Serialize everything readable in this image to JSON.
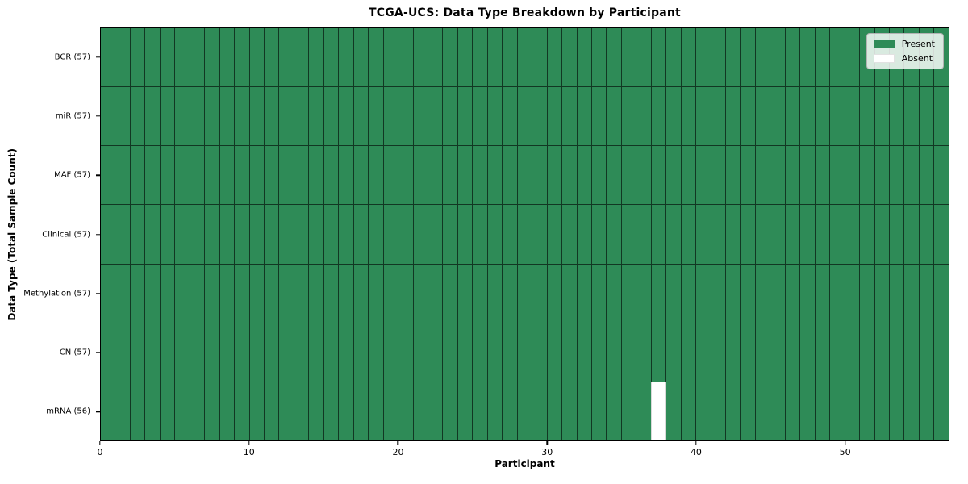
{
  "title": "TCGA-UCS: Data Type Breakdown by Participant",
  "chart_data": {
    "type": "heatmap",
    "title": "TCGA-UCS: Data Type Breakdown by Participant",
    "xlabel": "Participant",
    "ylabel": "Data Type (Total Sample Count)",
    "x_ticks": [
      0,
      10,
      20,
      30,
      40,
      50
    ],
    "x_range": [
      0,
      57
    ],
    "n_participants": 57,
    "rows": [
      {
        "label": "BCR (57)",
        "data_type": "BCR",
        "total": 57,
        "absent_participants": []
      },
      {
        "label": "miR (57)",
        "data_type": "miR",
        "total": 57,
        "absent_participants": []
      },
      {
        "label": "MAF (57)",
        "data_type": "MAF",
        "total": 57,
        "absent_participants": []
      },
      {
        "label": "Clinical (57)",
        "data_type": "Clinical",
        "total": 57,
        "absent_participants": []
      },
      {
        "label": "Methylation (57)",
        "data_type": "Methylation",
        "total": 57,
        "absent_participants": []
      },
      {
        "label": "CN (57)",
        "data_type": "CN",
        "total": 57,
        "absent_participants": []
      },
      {
        "label": "mRNA (56)",
        "data_type": "mRNA",
        "total": 56,
        "absent_participants": [
          37
        ]
      }
    ],
    "legend": [
      {
        "label": "Present",
        "color": "#2e8b57"
      },
      {
        "label": "Absent",
        "color": "#ffffff"
      }
    ],
    "legend_position": "upper right",
    "grid": true,
    "colors": {
      "present": "#2e8b57",
      "absent": "#ffffff",
      "grid_line": "rgba(0,0,0,0.6)",
      "spine": "#000000"
    }
  }
}
